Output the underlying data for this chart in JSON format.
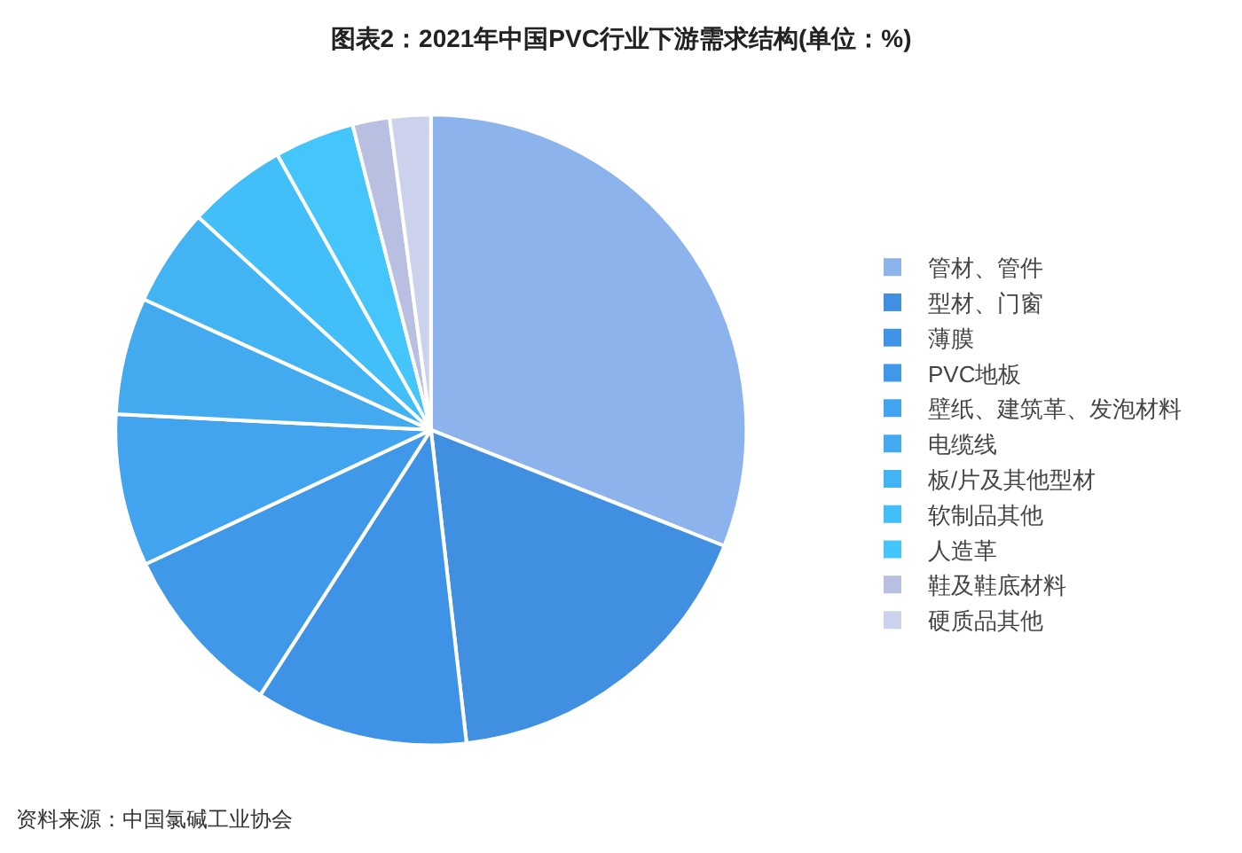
{
  "chart_data": {
    "type": "pie",
    "title": "图表2：2021年中国PVC行业下游需求结构(单位：%)",
    "categories": [
      "管材、管件",
      "型材、门窗",
      "薄膜",
      "PVC地板",
      "壁纸、建筑革、发泡材料",
      "电缆线",
      "板/片及其他型材",
      "软制品其他",
      "人造革",
      "鞋及鞋底材料",
      "硬质品其他"
    ],
    "values": [
      31.0,
      17.2,
      10.9,
      8.9,
      7.8,
      6.0,
      5.0,
      5.1,
      4.1,
      1.9,
      2.1
    ],
    "colors": [
      "#8db3ec",
      "#418fe0",
      "#3f93e6",
      "#4099e8",
      "#42a3ee",
      "#44aaf0",
      "#42b4f4",
      "#42bef8",
      "#45c6fb",
      "#b8bfe0",
      "#cdd2ec"
    ],
    "legend": "right",
    "annotations": [
      "资料来源：中国氯碱工业协会"
    ]
  }
}
